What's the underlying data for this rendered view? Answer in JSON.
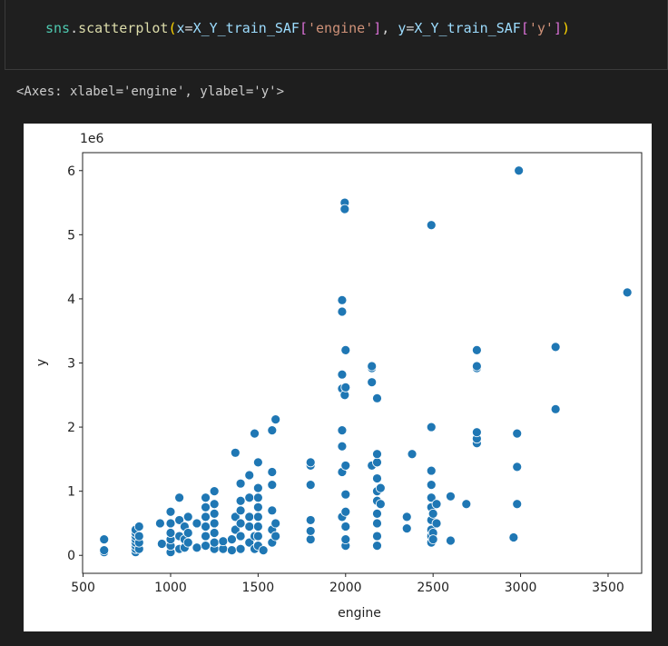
{
  "code": {
    "tokens": [
      {
        "text": "sns",
        "color": "#4ec9b0"
      },
      {
        "text": ".",
        "color": "#d4d4d4"
      },
      {
        "text": "scatterplot",
        "color": "#dcdcaa"
      },
      {
        "text": "(",
        "color": "#ffd700"
      },
      {
        "text": "x",
        "color": "#9cdcfe"
      },
      {
        "text": "=",
        "color": "#d4d4d4"
      },
      {
        "text": "X_Y_train_SAF",
        "color": "#9cdcfe"
      },
      {
        "text": "[",
        "color": "#da70d6"
      },
      {
        "text": "'engine'",
        "color": "#ce9178"
      },
      {
        "text": "]",
        "color": "#da70d6"
      },
      {
        "text": ", ",
        "color": "#d4d4d4"
      },
      {
        "text": "y",
        "color": "#9cdcfe"
      },
      {
        "text": "=",
        "color": "#d4d4d4"
      },
      {
        "text": "X_Y_train_SAF",
        "color": "#9cdcfe"
      },
      {
        "text": "[",
        "color": "#da70d6"
      },
      {
        "text": "'y'",
        "color": "#ce9178"
      },
      {
        "text": "]",
        "color": "#da70d6"
      },
      {
        "text": ")",
        "color": "#ffd700"
      }
    ]
  },
  "output": {
    "text": "<Axes: xlabel='engine', ylabel='y'>"
  },
  "chart_data": {
    "type": "scatter",
    "xlabel": "engine",
    "ylabel": "y",
    "y_offset_label": "1e6",
    "color": "#1f77b4",
    "xlim": [
      497,
      3692
    ],
    "xticks": [
      500,
      1000,
      1500,
      2000,
      2500,
      3000,
      3500
    ],
    "ylim": [
      -0.28,
      6.28
    ],
    "yticks": [
      0,
      1,
      2,
      3,
      4,
      5,
      6
    ],
    "x": [
      620,
      620,
      620,
      800,
      800,
      800,
      800,
      800,
      800,
      800,
      800,
      820,
      820,
      820,
      820,
      940,
      950,
      1000,
      1000,
      1000,
      1000,
      1000,
      1000,
      1050,
      1050,
      1050,
      1050,
      1080,
      1080,
      1080,
      1100,
      1100,
      1100,
      1150,
      1150,
      1200,
      1200,
      1200,
      1200,
      1200,
      1200,
      1250,
      1250,
      1250,
      1250,
      1250,
      1250,
      1250,
      1300,
      1300,
      1350,
      1350,
      1370,
      1370,
      1370,
      1400,
      1400,
      1400,
      1400,
      1400,
      1400,
      1450,
      1450,
      1450,
      1450,
      1450,
      1480,
      1480,
      1480,
      1500,
      1500,
      1500,
      1500,
      1500,
      1500,
      1500,
      1500,
      1530,
      1580,
      1580,
      1580,
      1580,
      1580,
      1580,
      1600,
      1600,
      1600,
      1800,
      1800,
      1800,
      1800,
      1800,
      1800,
      1980,
      1980,
      1980,
      1980,
      1980,
      1980,
      1980,
      1980,
      1995,
      1995,
      1995,
      2000,
      2000,
      2000,
      2000,
      2000,
      2000,
      2000,
      2000,
      2150,
      2150,
      2150,
      2150,
      2180,
      2180,
      2180,
      2180,
      2180,
      2180,
      2180,
      2180,
      2180,
      2180,
      2200,
      2200,
      2350,
      2350,
      2380,
      2490,
      2490,
      2490,
      2490,
      2490,
      2490,
      2490,
      2490,
      2490,
      2490,
      2500,
      2500,
      2500,
      2520,
      2520,
      2600,
      2600,
      2690,
      2750,
      2750,
      2750,
      2750,
      2750,
      2750,
      2960,
      2980,
      2980,
      2980,
      2990,
      3200,
      3200,
      3610
    ],
    "values": [
      0.05,
      0.08,
      0.25,
      0.05,
      0.1,
      0.15,
      0.2,
      0.25,
      0.3,
      0.35,
      0.4,
      0.1,
      0.2,
      0.3,
      0.45,
      0.5,
      0.18,
      0.05,
      0.15,
      0.25,
      0.35,
      0.5,
      0.68,
      0.1,
      0.3,
      0.55,
      0.9,
      0.12,
      0.25,
      0.45,
      0.2,
      0.35,
      0.6,
      0.12,
      0.5,
      0.15,
      0.3,
      0.45,
      0.6,
      0.75,
      0.9,
      0.1,
      0.2,
      0.35,
      0.5,
      0.65,
      0.8,
      1.0,
      0.1,
      0.22,
      0.08,
      0.25,
      0.4,
      0.6,
      1.6,
      0.1,
      0.3,
      0.5,
      0.7,
      0.85,
      1.12,
      0.2,
      0.45,
      0.6,
      0.9,
      1.25,
      0.1,
      0.3,
      1.9,
      0.15,
      0.3,
      0.45,
      0.6,
      0.75,
      0.9,
      1.05,
      1.45,
      0.08,
      0.2,
      0.4,
      0.7,
      1.1,
      1.3,
      1.95,
      2.12,
      0.3,
      0.5,
      0.25,
      0.38,
      0.55,
      1.1,
      1.4,
      1.45,
      0.6,
      1.3,
      1.7,
      1.95,
      2.6,
      2.82,
      3.8,
      3.98,
      5.5,
      5.4,
      2.5,
      0.15,
      0.25,
      0.45,
      0.68,
      0.95,
      1.4,
      3.2,
      2.62,
      1.4,
      2.7,
      2.92,
      2.95,
      0.15,
      0.3,
      0.5,
      0.65,
      0.85,
      1.0,
      1.2,
      1.45,
      1.58,
      2.45,
      0.8,
      1.05,
      0.42,
      0.6,
      1.58,
      5.15,
      2.0,
      1.32,
      1.1,
      0.9,
      0.75,
      0.55,
      0.4,
      0.3,
      0.2,
      0.65,
      0.35,
      0.25,
      0.8,
      0.5,
      0.92,
      0.23,
      0.8,
      1.75,
      1.82,
      1.92,
      2.92,
      2.95,
      3.2,
      0.28,
      0.8,
      1.38,
      1.9,
      6.0,
      3.25,
      2.28,
      4.1
    ]
  }
}
